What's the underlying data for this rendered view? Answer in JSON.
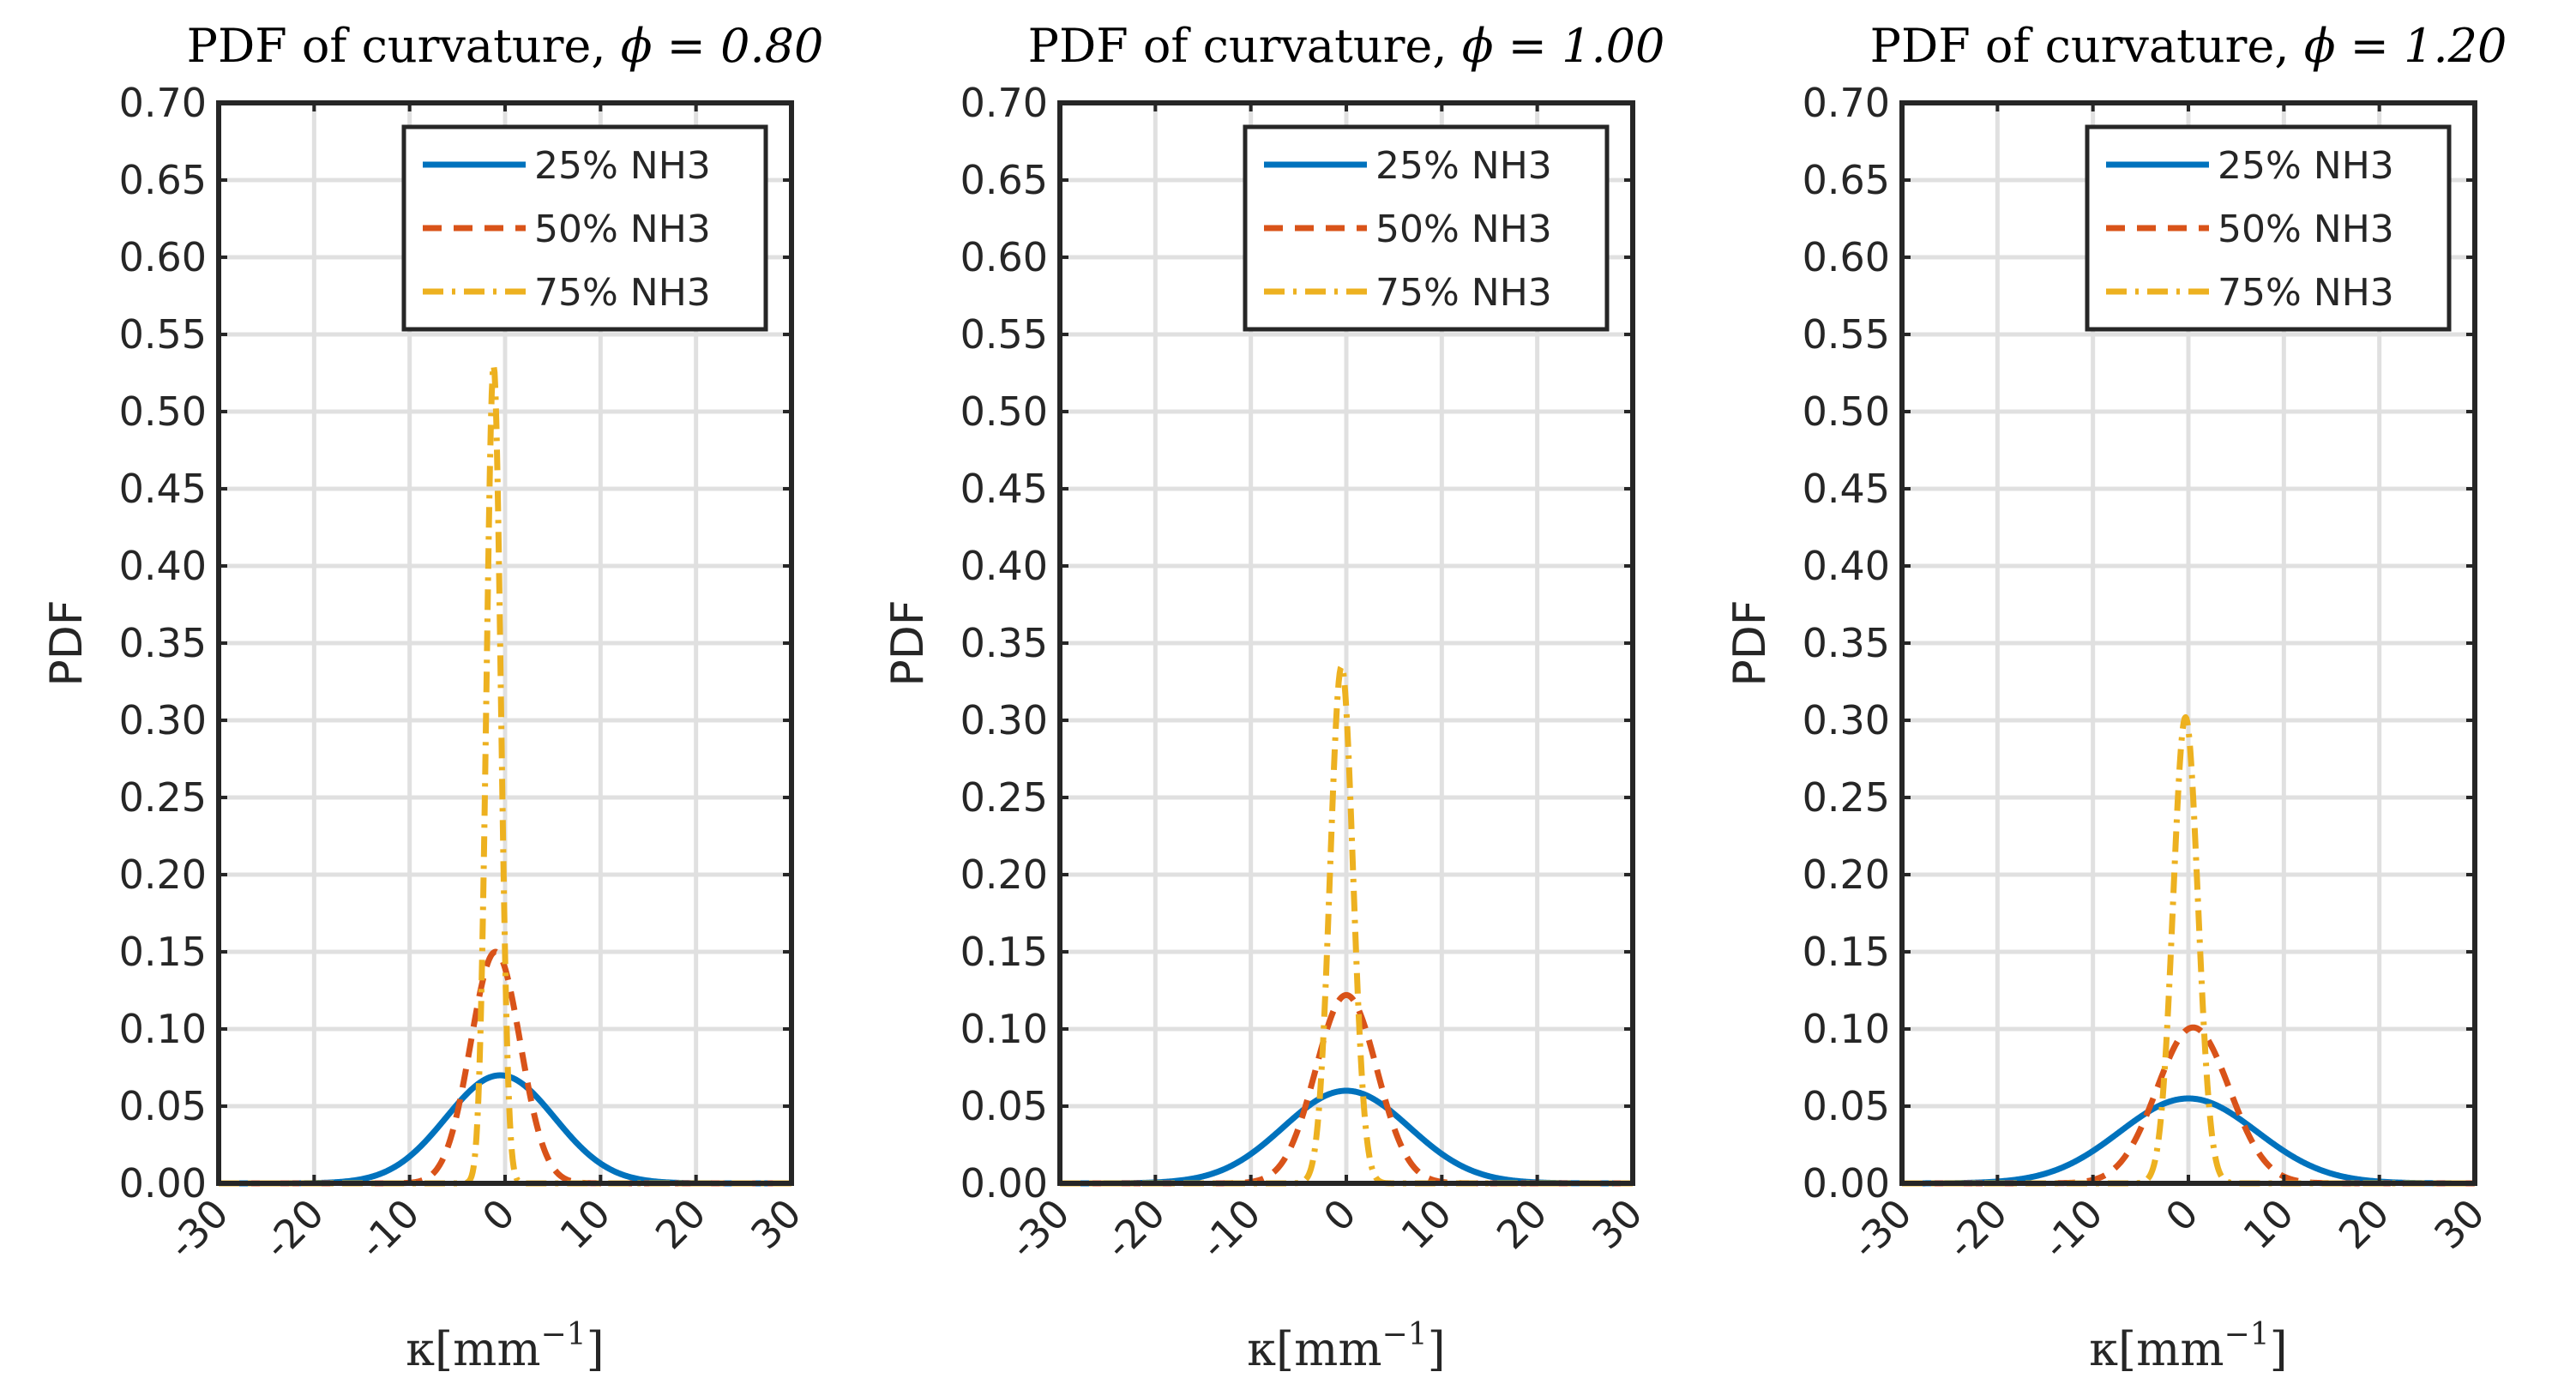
{
  "chart_data": [
    {
      "type": "line",
      "title_prefix": "PDF of curvature, ",
      "title_math": "ϕ = 0.80",
      "phi": 0.8,
      "xlabel_math": "κ[mm",
      "xlabel_exp": "−1",
      "xlabel_close": "]",
      "ylabel": "PDF",
      "xlim": [
        -30,
        30
      ],
      "ylim": [
        0,
        0.7
      ],
      "xticks": [
        -30,
        -20,
        -10,
        0,
        10,
        20,
        30
      ],
      "xtick_labels": [
        "-30",
        "-20",
        "-10",
        "0",
        "10",
        "20",
        "30"
      ],
      "yticks": [
        0,
        0.05,
        0.1,
        0.15,
        0.2,
        0.25,
        0.3,
        0.35,
        0.4,
        0.45,
        0.5,
        0.55,
        0.6,
        0.65,
        0.7
      ],
      "ytick_labels": [
        "0.00",
        "0.05",
        "0.10",
        "0.15",
        "0.20",
        "0.25",
        "0.30",
        "0.35",
        "0.40",
        "0.45",
        "0.50",
        "0.55",
        "0.60",
        "0.65",
        "0.70"
      ],
      "grid": true,
      "legend_position": "top-right",
      "series": [
        {
          "name": "25% NH3",
          "color": "#0072BD",
          "style": "solid",
          "peak_x": -0.5,
          "peak_y": 0.07,
          "sigma": 5.7
        },
        {
          "name": "50% NH3",
          "color": "#D95319",
          "style": "dashed",
          "peak_x": -1.0,
          "peak_y": 0.15,
          "sigma": 2.6
        },
        {
          "name": "75% NH3",
          "color": "#EDB120",
          "style": "dashdot",
          "peak_x": -1.2,
          "peak_y": 0.53,
          "sigma": 0.75
        }
      ]
    },
    {
      "type": "line",
      "title_prefix": "PDF of curvature, ",
      "title_math": "ϕ = 1.00",
      "phi": 1.0,
      "xlabel_math": "κ[mm",
      "xlabel_exp": "−1",
      "xlabel_close": "]",
      "ylabel": "PDF",
      "xlim": [
        -30,
        30
      ],
      "ylim": [
        0,
        0.7
      ],
      "xticks": [
        -30,
        -20,
        -10,
        0,
        10,
        20,
        30
      ],
      "xtick_labels": [
        "-30",
        "-20",
        "-10",
        "0",
        "10",
        "20",
        "30"
      ],
      "yticks": [
        0,
        0.05,
        0.1,
        0.15,
        0.2,
        0.25,
        0.3,
        0.35,
        0.4,
        0.45,
        0.5,
        0.55,
        0.6,
        0.65,
        0.7
      ],
      "ytick_labels": [
        "0.00",
        "0.05",
        "0.10",
        "0.15",
        "0.20",
        "0.25",
        "0.30",
        "0.35",
        "0.40",
        "0.45",
        "0.50",
        "0.55",
        "0.60",
        "0.65",
        "0.70"
      ],
      "grid": true,
      "legend_position": "top-right",
      "series": [
        {
          "name": "25% NH3",
          "color": "#0072BD",
          "style": "solid",
          "peak_x": 0.0,
          "peak_y": 0.06,
          "sigma": 6.6
        },
        {
          "name": "50% NH3",
          "color": "#D95319",
          "style": "dashed",
          "peak_x": 0.0,
          "peak_y": 0.122,
          "sigma": 3.2
        },
        {
          "name": "75% NH3",
          "color": "#EDB120",
          "style": "dashdot",
          "peak_x": -0.5,
          "peak_y": 0.335,
          "sigma": 1.2
        }
      ]
    },
    {
      "type": "line",
      "title_prefix": "PDF of curvature, ",
      "title_math": "ϕ = 1.20",
      "phi": 1.2,
      "xlabel_math": "κ[mm",
      "xlabel_exp": "−1",
      "xlabel_close": "]",
      "ylabel": "PDF",
      "xlim": [
        -30,
        30
      ],
      "ylim": [
        0,
        0.7
      ],
      "xticks": [
        -30,
        -20,
        -10,
        0,
        10,
        20,
        30
      ],
      "xtick_labels": [
        "-30",
        "-20",
        "-10",
        "0",
        "10",
        "20",
        "30"
      ],
      "yticks": [
        0,
        0.05,
        0.1,
        0.15,
        0.2,
        0.25,
        0.3,
        0.35,
        0.4,
        0.45,
        0.5,
        0.55,
        0.6,
        0.65,
        0.7
      ],
      "ytick_labels": [
        "0.00",
        "0.05",
        "0.10",
        "0.15",
        "0.20",
        "0.25",
        "0.30",
        "0.35",
        "0.40",
        "0.45",
        "0.50",
        "0.55",
        "0.60",
        "0.65",
        "0.70"
      ],
      "grid": true,
      "legend_position": "top-right",
      "series": [
        {
          "name": "25% NH3",
          "color": "#0072BD",
          "style": "solid",
          "peak_x": 0.0,
          "peak_y": 0.055,
          "sigma": 7.2
        },
        {
          "name": "50% NH3",
          "color": "#D95319",
          "style": "dashed",
          "peak_x": 0.5,
          "peak_y": 0.101,
          "sigma": 3.8
        },
        {
          "name": "75% NH3",
          "color": "#EDB120",
          "style": "dashdot",
          "peak_x": -0.3,
          "peak_y": 0.302,
          "sigma": 1.3
        }
      ]
    }
  ]
}
